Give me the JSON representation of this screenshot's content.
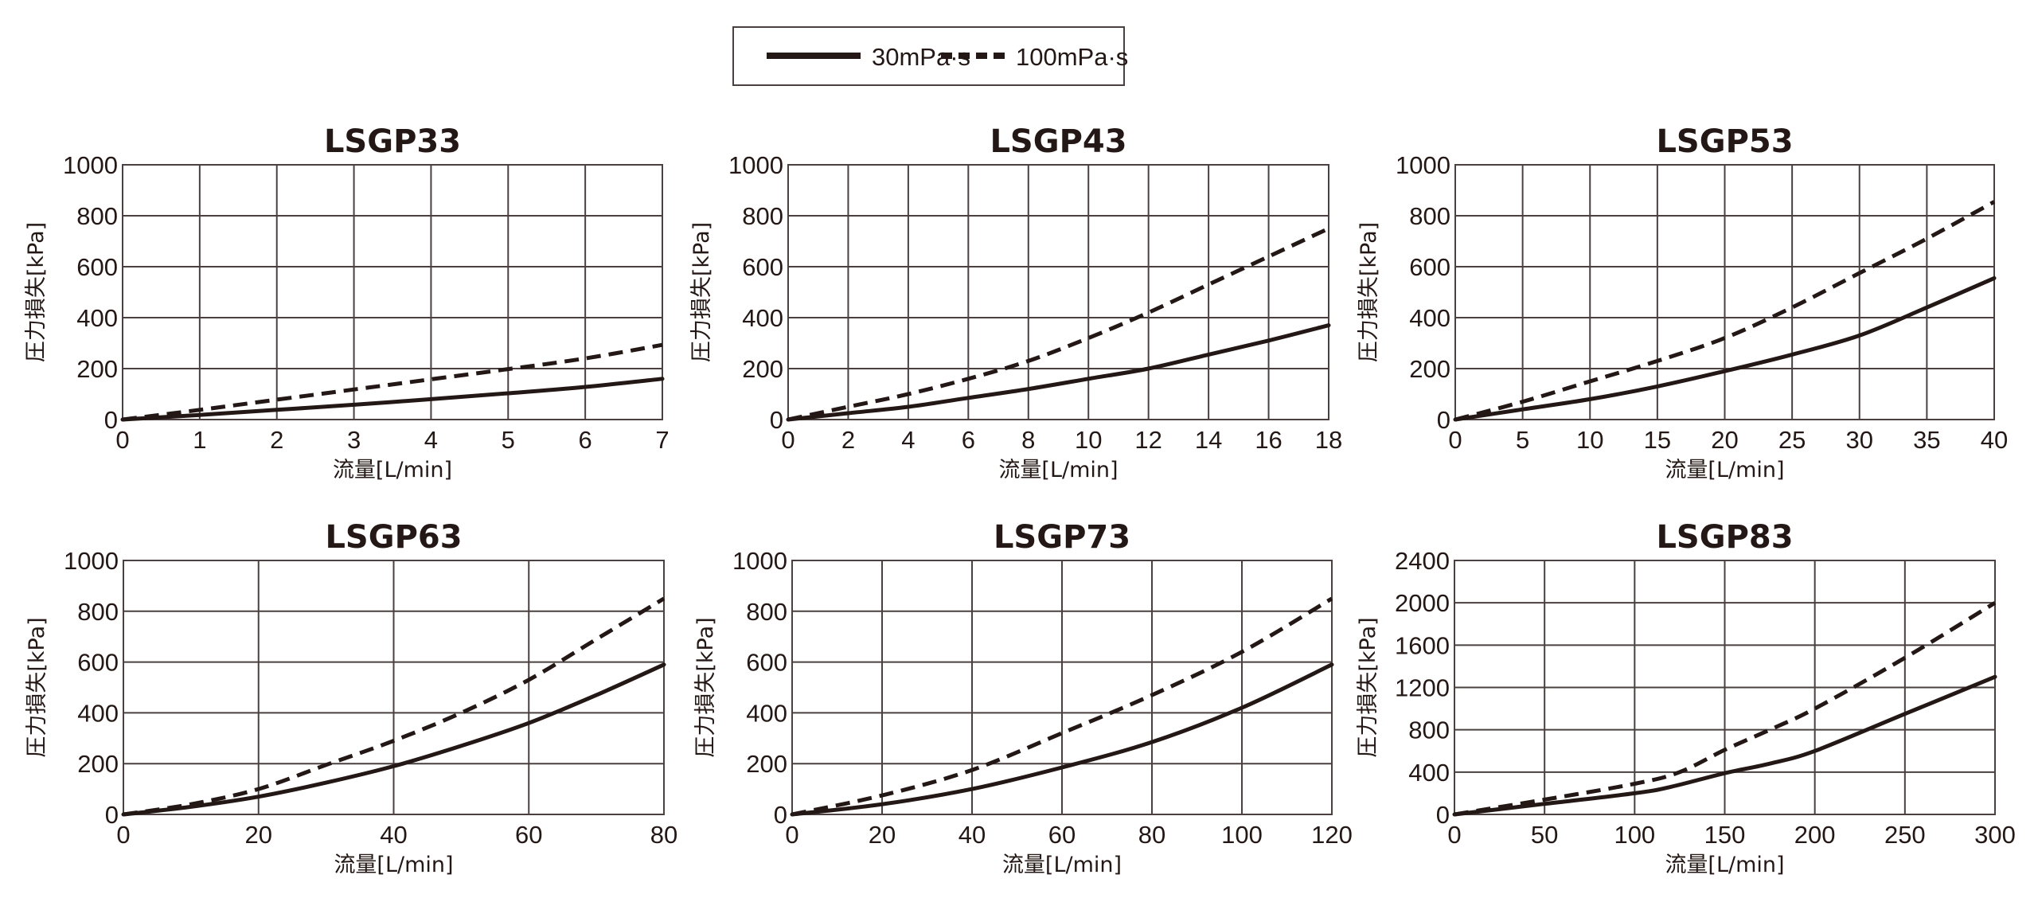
{
  "legend": {
    "items": [
      {
        "label": "30mPa·s",
        "style": "solid"
      },
      {
        "label": "100mPa·s",
        "style": "dashed"
      }
    ]
  },
  "colors": {
    "line": "#231815",
    "grid": "#4a4040"
  },
  "chart_data": [
    {
      "type": "line",
      "title": "LSGP33",
      "xlabel": "流量[L/min]",
      "ylabel": "圧力損失[kPa]",
      "xlim": [
        0,
        7
      ],
      "ylim": [
        0,
        1000
      ],
      "xticks": [
        0,
        1,
        2,
        3,
        4,
        5,
        6,
        7
      ],
      "yticks": [
        0,
        200,
        400,
        600,
        800,
        1000
      ],
      "grid": true,
      "series": [
        {
          "name": "30mPa·s",
          "x": [
            0,
            1,
            2,
            3,
            4,
            5,
            6,
            7
          ],
          "values": [
            0,
            18,
            38,
            58,
            80,
            103,
            128,
            160
          ]
        },
        {
          "name": "100mPa·s",
          "x": [
            0,
            1,
            2,
            3,
            4,
            5,
            6,
            7
          ],
          "values": [
            0,
            38,
            78,
            118,
            158,
            198,
            240,
            293
          ]
        }
      ]
    },
    {
      "type": "line",
      "title": "LSGP43",
      "xlabel": "流量[L/min]",
      "ylabel": "圧力損失[kPa]",
      "xlim": [
        0,
        18
      ],
      "ylim": [
        0,
        1000
      ],
      "xticks": [
        0,
        2,
        4,
        6,
        8,
        10,
        12,
        14,
        16,
        18
      ],
      "yticks": [
        0,
        200,
        400,
        600,
        800,
        1000
      ],
      "grid": true,
      "series": [
        {
          "name": "30mPa·s",
          "x": [
            0,
            2,
            4,
            6,
            8,
            10,
            12,
            14,
            16,
            18
          ],
          "values": [
            0,
            25,
            50,
            85,
            120,
            160,
            200,
            255,
            310,
            370
          ]
        },
        {
          "name": "100mPa·s",
          "x": [
            0,
            2,
            4,
            6,
            8,
            10,
            12,
            14,
            16,
            18
          ],
          "values": [
            0,
            50,
            100,
            160,
            230,
            320,
            420,
            530,
            640,
            750
          ]
        }
      ]
    },
    {
      "type": "line",
      "title": "LSGP53",
      "xlabel": "流量[L/min]",
      "ylabel": "圧力損失[kPa]",
      "xlim": [
        0,
        40
      ],
      "ylim": [
        0,
        1000
      ],
      "xticks": [
        0,
        5,
        10,
        15,
        20,
        25,
        30,
        35,
        40
      ],
      "yticks": [
        0,
        200,
        400,
        600,
        800,
        1000
      ],
      "grid": true,
      "series": [
        {
          "name": "30mPa·s",
          "x": [
            0,
            5,
            10,
            15,
            20,
            25,
            30,
            35,
            40
          ],
          "values": [
            0,
            40,
            80,
            130,
            190,
            255,
            330,
            440,
            555
          ]
        },
        {
          "name": "100mPa·s",
          "x": [
            0,
            5,
            10,
            15,
            20,
            25,
            30,
            35,
            40
          ],
          "values": [
            0,
            70,
            150,
            230,
            320,
            440,
            575,
            710,
            855
          ]
        }
      ]
    },
    {
      "type": "line",
      "title": "LSGP63",
      "xlabel": "流量[L/min]",
      "ylabel": "圧力損失[kPa]",
      "xlim": [
        0,
        80
      ],
      "ylim": [
        0,
        1000
      ],
      "xticks": [
        0,
        20,
        40,
        60,
        80
      ],
      "yticks": [
        0,
        200,
        400,
        600,
        800,
        1000
      ],
      "grid": true,
      "series": [
        {
          "name": "30mPa·s",
          "x": [
            0,
            10,
            20,
            30,
            40,
            50,
            60,
            70,
            80
          ],
          "values": [
            0,
            30,
            70,
            125,
            190,
            270,
            360,
            470,
            590
          ]
        },
        {
          "name": "100mPa·s",
          "x": [
            0,
            10,
            20,
            30,
            40,
            50,
            60,
            70,
            80
          ],
          "values": [
            0,
            40,
            100,
            195,
            290,
            400,
            530,
            690,
            850
          ]
        }
      ]
    },
    {
      "type": "line",
      "title": "LSGP73",
      "xlabel": "流量[L/min]",
      "ylabel": "圧力損失[kPa]",
      "xlim": [
        0,
        120
      ],
      "ylim": [
        0,
        1000
      ],
      "xticks": [
        0,
        20,
        40,
        60,
        80,
        100,
        120
      ],
      "yticks": [
        0,
        200,
        400,
        600,
        800,
        1000
      ],
      "grid": true,
      "series": [
        {
          "name": "30mPa·s",
          "x": [
            0,
            20,
            40,
            60,
            80,
            100,
            120
          ],
          "values": [
            0,
            40,
            100,
            185,
            285,
            420,
            590
          ]
        },
        {
          "name": "100mPa·s",
          "x": [
            0,
            20,
            40,
            60,
            80,
            100,
            120
          ],
          "values": [
            0,
            75,
            175,
            320,
            470,
            640,
            850
          ]
        }
      ]
    },
    {
      "type": "line",
      "title": "LSGP83",
      "xlabel": "流量[L/min]",
      "ylabel": "圧力損失[kPa]",
      "xlim": [
        0,
        300
      ],
      "ylim": [
        0,
        2400
      ],
      "xticks": [
        0,
        50,
        100,
        150,
        200,
        250,
        300
      ],
      "yticks": [
        0,
        400,
        800,
        1200,
        1600,
        2000,
        2400
      ],
      "grid": true,
      "series": [
        {
          "name": "30mPa·s",
          "x": [
            0,
            50,
            100,
            120,
            150,
            175,
            200,
            250,
            300
          ],
          "values": [
            0,
            100,
            200,
            260,
            390,
            480,
            600,
            950,
            1300
          ]
        },
        {
          "name": "100mPa·s",
          "x": [
            0,
            50,
            100,
            125,
            150,
            175,
            200,
            250,
            300
          ],
          "values": [
            0,
            140,
            290,
            400,
            610,
            800,
            1000,
            1480,
            2000
          ]
        }
      ]
    }
  ]
}
